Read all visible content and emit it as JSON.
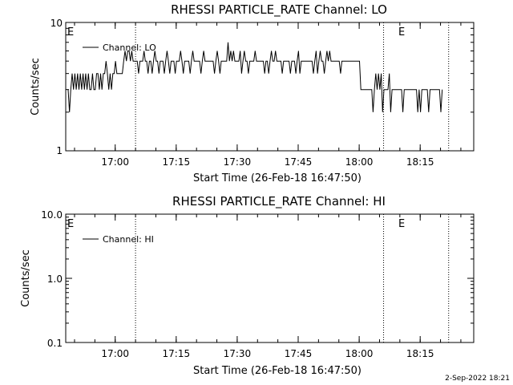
{
  "footer_timestamp": "2-Sep-2022 18:21",
  "chart_data": [
    {
      "type": "line",
      "title": "RHESSI PARTICLE_RATE Channel: LO",
      "xlabel": "Start Time (26-Feb-18 16:47:50)",
      "ylabel": "Counts/sec",
      "x_ticks": [
        "17:00",
        "17:15",
        "17:30",
        "17:45",
        "18:00",
        "18:15"
      ],
      "y_ticks": [
        "1",
        "10"
      ],
      "y_scale": "log",
      "ylim": [
        1,
        10
      ],
      "xlim": [
        "16:47:50",
        "18:28:10"
      ],
      "legend": "top-left",
      "series": [
        {
          "name": "Channel: LO",
          "color": "#000000",
          "x_start": "16:48:25",
          "x_step_seconds": 20,
          "values": [
            3,
            2,
            3,
            4,
            3,
            4,
            3,
            4,
            3,
            4,
            3,
            4,
            3,
            4,
            3,
            4,
            3,
            3,
            4,
            3,
            3,
            4,
            4,
            3,
            4,
            3,
            4,
            4,
            5,
            4,
            3,
            4,
            3,
            4,
            4,
            5,
            4,
            4,
            4,
            4,
            4,
            5,
            6,
            5,
            6,
            6,
            5,
            6,
            5,
            5,
            5,
            5,
            4,
            5,
            5,
            5,
            6,
            5,
            5,
            4,
            5,
            5,
            4,
            5,
            6,
            5,
            5,
            4,
            5,
            5,
            5,
            4,
            5,
            6,
            5,
            4,
            5,
            5,
            5,
            4,
            5,
            5,
            5,
            6,
            5,
            4,
            5,
            5,
            5,
            5,
            4,
            5,
            6,
            5,
            5,
            5,
            5,
            5,
            4,
            5,
            6,
            5,
            5,
            5,
            5,
            5,
            5,
            5,
            4,
            5,
            6,
            5,
            4,
            5,
            5,
            5,
            5,
            5,
            7,
            5,
            6,
            5,
            6,
            5,
            5,
            5,
            5,
            6,
            4,
            5,
            6,
            5,
            5,
            4,
            5,
            5,
            5,
            5,
            6,
            5,
            5,
            5,
            5,
            5,
            5,
            4,
            5,
            5,
            4,
            5,
            6,
            5,
            5,
            6,
            5,
            5,
            5,
            5,
            4,
            5,
            5,
            5,
            5,
            5,
            4,
            5,
            5,
            5,
            4,
            5,
            6,
            4,
            5,
            5,
            5,
            5,
            5,
            5,
            5,
            5,
            5,
            4,
            5,
            6,
            4,
            5,
            6,
            5,
            5,
            4,
            5,
            6,
            5,
            6,
            5,
            5,
            5,
            5,
            5,
            5,
            5,
            4,
            5,
            5,
            5,
            5,
            5,
            5,
            5,
            5,
            5,
            5,
            5,
            5,
            5,
            5,
            3,
            3,
            3,
            3,
            3,
            3,
            3,
            3,
            3,
            2,
            3,
            4,
            3,
            4,
            3,
            4,
            2,
            3,
            3,
            3,
            3,
            4,
            2,
            3,
            3,
            3,
            3,
            3,
            3,
            3,
            3,
            2,
            3,
            3,
            3,
            3,
            3,
            3,
            3,
            3,
            3,
            3,
            2,
            3,
            2,
            3,
            3,
            3,
            3,
            3,
            2,
            3,
            3,
            3,
            3,
            3,
            3,
            3,
            3,
            2,
            3
          ]
        }
      ],
      "vertical_markers": [
        "17:05",
        "18:06",
        "18:22"
      ],
      "marker_labels": [
        "E",
        "E"
      ]
    },
    {
      "type": "line",
      "title": "RHESSI PARTICLE_RATE Channel: HI",
      "xlabel": "Start Time (26-Feb-18 16:47:50)",
      "ylabel": "Counts/sec",
      "x_ticks": [
        "17:00",
        "17:15",
        "17:30",
        "17:45",
        "18:00",
        "18:15"
      ],
      "y_ticks": [
        "0.1",
        "1.0",
        "10.0"
      ],
      "y_scale": "log",
      "ylim": [
        0.1,
        10
      ],
      "xlim": [
        "16:47:50",
        "18:28:10"
      ],
      "legend": "top-left",
      "series": [
        {
          "name": "Channel: HI",
          "color": "#000000",
          "values": []
        }
      ],
      "vertical_markers": [
        "17:05",
        "18:06",
        "18:22"
      ],
      "marker_labels": [
        "E",
        "E"
      ]
    }
  ]
}
